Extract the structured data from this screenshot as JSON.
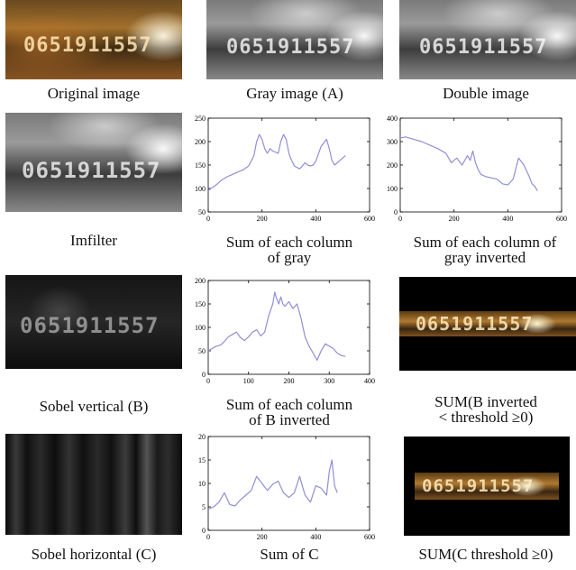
{
  "captions": {
    "r1c1": "Original image",
    "r1c2": "Gray image (A)",
    "r1c3": "Double image",
    "r2c1": "Imfilter",
    "r2c2_l1": "Sum of each column",
    "r2c2_l2": "of gray",
    "r2c3_l1": "Sum of each column of",
    "r2c3_l2": "gray inverted",
    "r3c1": "Sobel vertical (B)",
    "r3c2_l1": "Sum of each column",
    "r3c2_l2": "of B inverted",
    "r3c3_l1": "SUM(B inverted",
    "r3c3_l2": "< threshold ≥0)",
    "r4c1": "Sobel horizontal (C)",
    "r4c2": "Sum of C",
    "r4c3": "SUM(C threshold ≥0)"
  },
  "image_text": {
    "digits": "0651911557"
  },
  "colors": {
    "line": "#8f8fd6",
    "axis": "#000000"
  },
  "chart_data": [
    {
      "id": "gray-col-sum",
      "type": "line",
      "xlim": [
        0,
        600
      ],
      "ylim": [
        50,
        250
      ],
      "xticks": [
        "0",
        "200",
        "400",
        "600"
      ],
      "yticks": [
        "50",
        "100",
        "150",
        "200",
        "250"
      ],
      "x": [
        0,
        10,
        30,
        50,
        70,
        90,
        110,
        130,
        150,
        170,
        180,
        190,
        200,
        210,
        220,
        230,
        240,
        260,
        270,
        280,
        290,
        300,
        310,
        320,
        330,
        340,
        350,
        360,
        370,
        380,
        390,
        400,
        420,
        440,
        450,
        460,
        470,
        480,
        490,
        500,
        510
      ],
      "y": [
        95,
        100,
        108,
        118,
        125,
        130,
        135,
        140,
        148,
        170,
        200,
        215,
        205,
        185,
        175,
        185,
        180,
        175,
        200,
        215,
        205,
        175,
        160,
        148,
        145,
        142,
        148,
        155,
        150,
        148,
        150,
        158,
        190,
        205,
        185,
        160,
        150,
        155,
        160,
        165,
        170
      ]
    },
    {
      "id": "gray-inverted-col-sum",
      "type": "line",
      "xlim": [
        0,
        600
      ],
      "ylim": [
        0,
        400
      ],
      "xticks": [
        "0",
        "200",
        "400",
        "600"
      ],
      "yticks": [
        "0",
        "100",
        "200",
        "300",
        "400"
      ],
      "x": [
        0,
        20,
        50,
        80,
        110,
        140,
        170,
        190,
        210,
        230,
        250,
        260,
        270,
        280,
        290,
        300,
        320,
        340,
        360,
        380,
        400,
        420,
        440,
        460,
        480,
        490,
        500,
        510
      ],
      "y": [
        315,
        320,
        310,
        300,
        285,
        270,
        250,
        210,
        230,
        200,
        240,
        220,
        260,
        210,
        180,
        160,
        150,
        145,
        140,
        120,
        115,
        140,
        230,
        200,
        150,
        120,
        110,
        90
      ]
    },
    {
      "id": "b-inverted-col-sum",
      "type": "line",
      "xlim": [
        0,
        400
      ],
      "ylim": [
        0,
        200
      ],
      "xticks": [
        "0",
        "100",
        "200",
        "300",
        "400"
      ],
      "yticks": [
        "0",
        "50",
        "100",
        "150",
        "200"
      ],
      "x": [
        0,
        10,
        20,
        30,
        40,
        50,
        60,
        70,
        80,
        90,
        100,
        110,
        120,
        130,
        140,
        150,
        160,
        165,
        170,
        175,
        180,
        185,
        190,
        200,
        210,
        220,
        230,
        240,
        250,
        260,
        270,
        280,
        290,
        300,
        310,
        320,
        330,
        340
      ],
      "y": [
        50,
        55,
        60,
        62,
        70,
        80,
        85,
        90,
        78,
        72,
        80,
        90,
        95,
        82,
        90,
        125,
        150,
        175,
        160,
        150,
        165,
        150,
        145,
        155,
        140,
        150,
        120,
        80,
        60,
        45,
        30,
        50,
        65,
        60,
        55,
        45,
        40,
        38
      ]
    },
    {
      "id": "c-sum",
      "type": "line",
      "xlim": [
        0,
        600
      ],
      "ylim": [
        0,
        20
      ],
      "xticks": [
        "0",
        "200",
        "400",
        "600"
      ],
      "yticks": [
        "0",
        "5",
        "10",
        "15",
        "20"
      ],
      "x": [
        0,
        20,
        40,
        60,
        80,
        100,
        120,
        140,
        160,
        180,
        200,
        220,
        240,
        260,
        280,
        300,
        320,
        340,
        360,
        380,
        400,
        420,
        440,
        450,
        460,
        470,
        480
      ],
      "y": [
        4.5,
        5,
        6,
        8,
        5.5,
        5.2,
        6.5,
        7.5,
        8.5,
        11.5,
        10,
        8.5,
        9.8,
        10.5,
        8,
        7,
        8,
        11.5,
        7.5,
        6,
        9.5,
        9,
        7.5,
        12.5,
        15,
        9.5,
        8
      ]
    }
  ]
}
